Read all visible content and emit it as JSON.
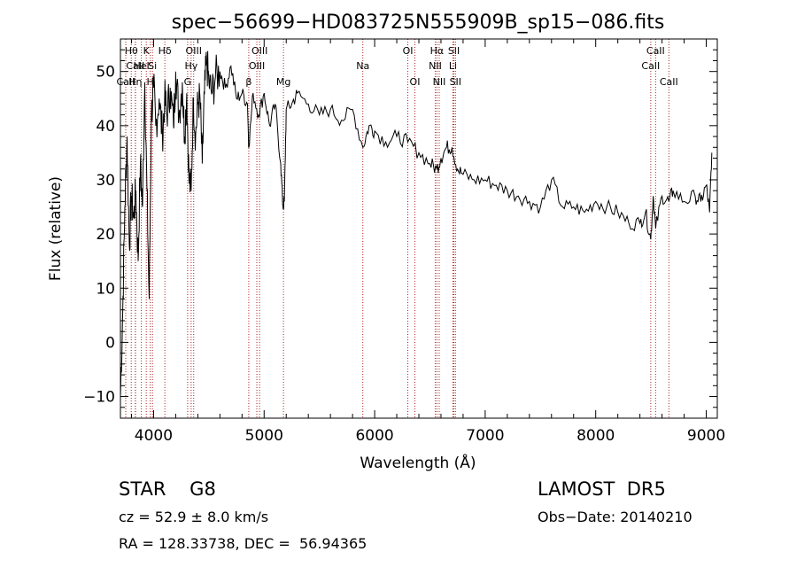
{
  "chart_data": {
    "type": "line",
    "title": "spec−56699−HD083725N555909B_sp15−086.fits",
    "xlabel": "Wavelength (Å)",
    "ylabel": "Flux (relative)",
    "xlim": [
      3700,
      9100
    ],
    "ylim": [
      -14,
      56
    ],
    "xticks": [
      4000,
      5000,
      6000,
      7000,
      8000,
      9000
    ],
    "xtick_labels": [
      "4000",
      "5000",
      "6000",
      "7000",
      "8000",
      "9000"
    ],
    "yticks": [
      -10,
      0,
      10,
      20,
      30,
      40,
      50
    ],
    "ytick_labels": [
      "−10",
      "0",
      "10",
      "20",
      "30",
      "40",
      "50"
    ],
    "grid": false,
    "line_color": "#000000",
    "marker_color": "#b22222",
    "series": [
      {
        "x": [
          3700,
          3720,
          3740,
          3760,
          3780,
          3800,
          3820,
          3840,
          3860,
          3880,
          3900,
          3920,
          3940,
          3960,
          3980,
          4000,
          4020,
          4050,
          4080,
          4100,
          4120,
          4150,
          4180,
          4200,
          4230,
          4260,
          4280,
          4300,
          4320,
          4340,
          4360,
          4380,
          4400,
          4420,
          4440,
          4460,
          4480,
          4500,
          4530,
          4560,
          4600,
          4650,
          4700,
          4750,
          4800,
          4850,
          4861,
          4900,
          4950,
          5000,
          5050,
          5100,
          5150,
          5170,
          5183,
          5200,
          5250,
          5300,
          5400,
          5500,
          5600,
          5700,
          5800,
          5893,
          5950,
          6000,
          6100,
          6200,
          6300,
          6400,
          6500,
          6563,
          6600,
          6650,
          6700,
          6750,
          6800,
          6900,
          7000,
          7100,
          7200,
          7300,
          7400,
          7500,
          7600,
          7700,
          7800,
          7900,
          8000,
          8100,
          8200,
          8300,
          8400,
          8450,
          8498,
          8520,
          8542,
          8600,
          8662,
          8700,
          8800,
          8900,
          8950,
          9000,
          9030,
          9050
        ],
        "y": [
          -10,
          5,
          25,
          38,
          18,
          27,
          23,
          28,
          15,
          33,
          25,
          48,
          28,
          8,
          42,
          47,
          40,
          45,
          38,
          45,
          42,
          47,
          40,
          50,
          42,
          48,
          38,
          46,
          30,
          28,
          45,
          38,
          44,
          45,
          33,
          46,
          52,
          48,
          46,
          49,
          50,
          47,
          51,
          45,
          46,
          44,
          36,
          46,
          42,
          46,
          40,
          44,
          33,
          25,
          26,
          43,
          44,
          46,
          44,
          42,
          43,
          41,
          43,
          36,
          40,
          39,
          37,
          38,
          37,
          35,
          33,
          32,
          34,
          36,
          36,
          32,
          31,
          30,
          30,
          29,
          28,
          27,
          26,
          25,
          30,
          25,
          25,
          24,
          26,
          25,
          24,
          22,
          22,
          24,
          19,
          27,
          21,
          27,
          26,
          28,
          26,
          27,
          26,
          29,
          24,
          35
        ]
      }
    ],
    "line_markers": [
      {
        "label": "Hθ",
        "wavelength": 3798,
        "row": 0
      },
      {
        "label": "CaII",
        "wavelength": 3835,
        "row": 1
      },
      {
        "label": "CaII",
        "wavelength": 3748,
        "row": 2
      },
      {
        "label": "Hη",
        "wavelength": 3835,
        "row": 2
      },
      {
        "label": "K",
        "wavelength": 3934,
        "row": 0
      },
      {
        "label": "HeI",
        "wavelength": 3889,
        "row": 1
      },
      {
        "label": "H",
        "wavelength": 3970,
        "row": 2
      },
      {
        "label": "Si",
        "wavelength": 3990,
        "row": 1
      },
      {
        "label": "Hδ",
        "wavelength": 4102,
        "row": 0
      },
      {
        "label": "OIII",
        "wavelength": 4363,
        "row": 0
      },
      {
        "label": "Hγ",
        "wavelength": 4340,
        "row": 1
      },
      {
        "label": "G",
        "wavelength": 4308,
        "row": 2
      },
      {
        "label": "OIII",
        "wavelength": 4959,
        "row": 0
      },
      {
        "label": "OIII",
        "wavelength": 4934,
        "row": 1
      },
      {
        "label": "β",
        "wavelength": 4861,
        "row": 2
      },
      {
        "label": "Mg",
        "wavelength": 5175,
        "row": 2
      },
      {
        "label": "Na",
        "wavelength": 5893,
        "row": 1
      },
      {
        "label": "OI",
        "wavelength": 6300,
        "row": 0
      },
      {
        "label": "OI",
        "wavelength": 6364,
        "row": 2
      },
      {
        "label": "Hα",
        "wavelength": 6563,
        "row": 0
      },
      {
        "label": "NII",
        "wavelength": 6548,
        "row": 1
      },
      {
        "label": "NII",
        "wavelength": 6584,
        "row": 2
      },
      {
        "label": "SII",
        "wavelength": 6717,
        "row": 0
      },
      {
        "label": "Li",
        "wavelength": 6708,
        "row": 1
      },
      {
        "label": "SII",
        "wavelength": 6731,
        "row": 2
      },
      {
        "label": "CaII",
        "wavelength": 8542,
        "row": 0
      },
      {
        "label": "CaII",
        "wavelength": 8498,
        "row": 1
      },
      {
        "label": "CaII",
        "wavelength": 8662,
        "row": 2
      }
    ]
  },
  "info": {
    "class": "STAR    G8",
    "survey": "LAMOST  DR5",
    "cz": "cz = 52.9 ± 8.0 km/s",
    "obs_date": "Obs−Date: 20140210",
    "coords": "RA = 128.33738, DEC =  56.94365"
  }
}
